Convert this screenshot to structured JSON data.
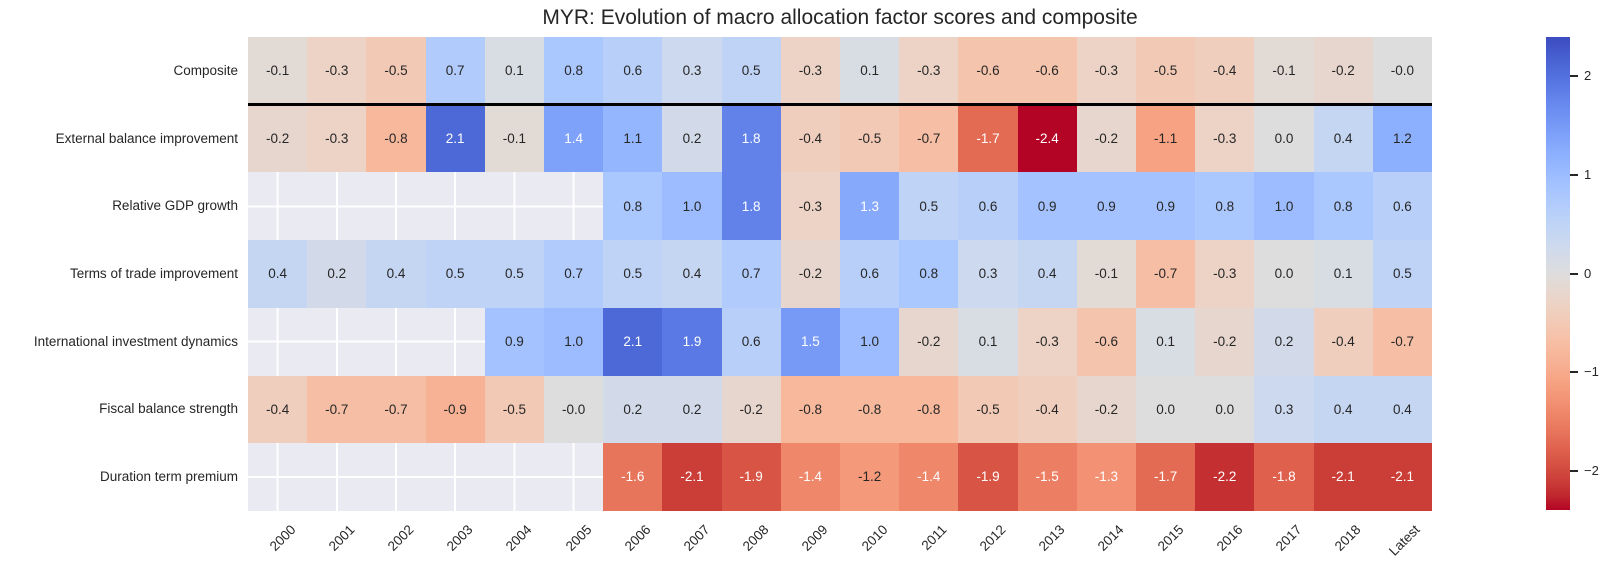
{
  "title": "MYR: Evolution of macro allocation factor scores and composite",
  "colors": {
    "background": "#ffffff",
    "empty_cell": "#eaeaf2",
    "grid_line": "#ffffff",
    "separator_line": "#000000",
    "dark_annotation_text": "#262626",
    "light_annotation_text": "#ffffff",
    "colormap_max_blue": "#3b4cc0",
    "colormap_mid_gray": "#dddddd",
    "colormap_min_red": "#b40426"
  },
  "chart_data": {
    "type": "heatmap",
    "title": "MYR: Evolution of macro allocation factor scores and composite",
    "colormap": "coolwarm_r",
    "vmin": -2.4,
    "vmax": 2.4,
    "center": 0,
    "x_tick_rotation": 45,
    "legend_position": "right-colorbar",
    "colorbar_ticks": [
      {
        "value": 2,
        "label": "2"
      },
      {
        "value": 1,
        "label": "1"
      },
      {
        "value": 0,
        "label": "0"
      },
      {
        "value": -1,
        "label": "−1"
      },
      {
        "value": -2,
        "label": "−2"
      }
    ],
    "separator_after_row_index": 0,
    "columns": [
      "2000",
      "2001",
      "2002",
      "2003",
      "2004",
      "2005",
      "2006",
      "2007",
      "2008",
      "2009",
      "2010",
      "2011",
      "2012",
      "2013",
      "2014",
      "2015",
      "2016",
      "2017",
      "2018",
      "Latest"
    ],
    "rows": [
      {
        "label": "Composite",
        "values": [
          -0.1,
          -0.3,
          -0.5,
          0.7,
          0.1,
          0.8,
          0.6,
          0.3,
          0.5,
          -0.3,
          0.1,
          -0.3,
          -0.6,
          -0.6,
          -0.3,
          -0.5,
          -0.4,
          -0.1,
          -0.2,
          -0.0
        ],
        "display": [
          "-0.1",
          "-0.3",
          "-0.5",
          "0.7",
          "0.1",
          "0.8",
          "0.6",
          "0.3",
          "0.5",
          "-0.3",
          "0.1",
          "-0.3",
          "-0.6",
          "-0.6",
          "-0.3",
          "-0.5",
          "-0.4",
          "-0.1",
          "-0.2",
          "-0.0"
        ]
      },
      {
        "label": "External balance improvement",
        "values": [
          -0.2,
          -0.3,
          -0.8,
          2.1,
          -0.1,
          1.4,
          1.1,
          0.2,
          1.8,
          -0.4,
          -0.5,
          -0.7,
          -1.7,
          -2.4,
          -0.2,
          -1.1,
          -0.3,
          0.0,
          0.4,
          1.2
        ],
        "display": [
          "-0.2",
          "-0.3",
          "-0.8",
          "2.1",
          "-0.1",
          "1.4",
          "1.1",
          "0.2",
          "1.8",
          "-0.4",
          "-0.5",
          "-0.7",
          "-1.7",
          "-2.4",
          "-0.2",
          "-1.1",
          "-0.3",
          "0.0",
          "0.4",
          "1.2"
        ]
      },
      {
        "label": "Relative GDP growth",
        "values": [
          null,
          null,
          null,
          null,
          null,
          null,
          0.8,
          1.0,
          1.8,
          -0.3,
          1.3,
          0.5,
          0.6,
          0.9,
          0.9,
          0.9,
          0.8,
          1.0,
          0.8,
          0.6
        ],
        "display": [
          null,
          null,
          null,
          null,
          null,
          null,
          "0.8",
          "1.0",
          "1.8",
          "-0.3",
          "1.3",
          "0.5",
          "0.6",
          "0.9",
          "0.9",
          "0.9",
          "0.8",
          "1.0",
          "0.8",
          "0.6"
        ]
      },
      {
        "label": "Terms of trade improvement",
        "values": [
          0.4,
          0.2,
          0.4,
          0.5,
          0.5,
          0.7,
          0.5,
          0.4,
          0.7,
          -0.2,
          0.6,
          0.8,
          0.3,
          0.4,
          -0.1,
          -0.7,
          -0.3,
          0.0,
          0.1,
          0.5
        ],
        "display": [
          "0.4",
          "0.2",
          "0.4",
          "0.5",
          "0.5",
          "0.7",
          "0.5",
          "0.4",
          "0.7",
          "-0.2",
          "0.6",
          "0.8",
          "0.3",
          "0.4",
          "-0.1",
          "-0.7",
          "-0.3",
          "0.0",
          "0.1",
          "0.5"
        ]
      },
      {
        "label": "International investment dynamics",
        "values": [
          null,
          null,
          null,
          null,
          0.9,
          1.0,
          2.1,
          1.9,
          0.6,
          1.5,
          1.0,
          -0.2,
          0.1,
          -0.3,
          -0.6,
          0.1,
          -0.2,
          0.2,
          -0.4,
          -0.7
        ],
        "display": [
          null,
          null,
          null,
          null,
          "0.9",
          "1.0",
          "2.1",
          "1.9",
          "0.6",
          "1.5",
          "1.0",
          "-0.2",
          "0.1",
          "-0.3",
          "-0.6",
          "0.1",
          "-0.2",
          "0.2",
          "-0.4",
          "-0.7"
        ]
      },
      {
        "label": "Fiscal balance strength",
        "values": [
          -0.4,
          -0.7,
          -0.7,
          -0.9,
          -0.5,
          -0.0,
          0.2,
          0.2,
          -0.2,
          -0.8,
          -0.8,
          -0.8,
          -0.5,
          -0.4,
          -0.2,
          0.0,
          0.0,
          0.3,
          0.4,
          0.4
        ],
        "display": [
          "-0.4",
          "-0.7",
          "-0.7",
          "-0.9",
          "-0.5",
          "-0.0",
          "0.2",
          "0.2",
          "-0.2",
          "-0.8",
          "-0.8",
          "-0.8",
          "-0.5",
          "-0.4",
          "-0.2",
          "0.0",
          "0.0",
          "0.3",
          "0.4",
          "0.4"
        ]
      },
      {
        "label": "Duration term premium",
        "values": [
          null,
          null,
          null,
          null,
          null,
          null,
          -1.6,
          -2.1,
          -1.9,
          -1.4,
          -1.2,
          -1.4,
          -1.9,
          -1.5,
          -1.3,
          -1.7,
          -2.2,
          -1.8,
          -2.1,
          -2.1
        ],
        "display": [
          null,
          null,
          null,
          null,
          null,
          null,
          "-1.6",
          "-2.1",
          "-1.9",
          "-1.4",
          "-1.2",
          "-1.4",
          "-1.9",
          "-1.5",
          "-1.3",
          "-1.7",
          "-2.2",
          "-1.8",
          "-2.1",
          "-2.1"
        ]
      }
    ]
  }
}
